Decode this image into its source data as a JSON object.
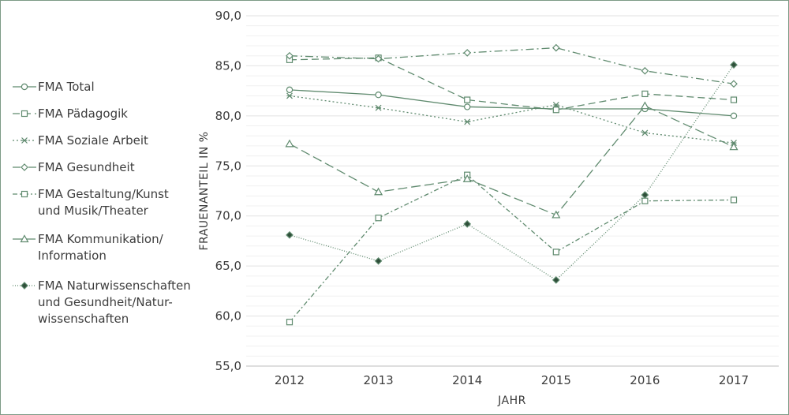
{
  "chart_data": {
    "type": "line",
    "title": "",
    "xlabel": "JAHR",
    "ylabel": "FRAUENANTEIL IN %",
    "x": [
      "2012",
      "2013",
      "2014",
      "2015",
      "2016",
      "2017"
    ],
    "ylim": [
      55,
      90
    ],
    "yticks": [
      "55,0",
      "60,0",
      "65,0",
      "70,0",
      "75,0",
      "80,0",
      "85,0",
      "90,0"
    ],
    "grid": true,
    "legend_position": "left",
    "line_color": "#5f8a6e",
    "series": [
      {
        "name": "FMA Total",
        "lines": [
          "FMA Total"
        ],
        "marker": "circle",
        "dash": "",
        "values": [
          82.6,
          82.1,
          80.9,
          80.7,
          80.7,
          80.0
        ]
      },
      {
        "name": "FMA Pädagogik",
        "lines": [
          "FMA Pädagogik"
        ],
        "marker": "square",
        "dash": "9,5",
        "values": [
          85.6,
          85.8,
          81.6,
          80.6,
          82.2,
          81.6
        ]
      },
      {
        "name": "FMA Soziale Arbeit",
        "lines": [
          "FMA Soziale Arbeit"
        ],
        "marker": "star",
        "dash": "2,3",
        "values": [
          82.0,
          80.8,
          79.4,
          81.1,
          78.3,
          77.3
        ]
      },
      {
        "name": "FMA Gesundheit",
        "lines": [
          "FMA Gesundheit"
        ],
        "marker": "diamond",
        "dash": "10,4,2,4",
        "values": [
          86.0,
          85.7,
          86.3,
          86.8,
          84.5,
          83.2
        ]
      },
      {
        "name": "FMA Gestaltung/Kunst und Musik/Theater",
        "lines": [
          "FMA Gestaltung/Kunst",
          "und Musik/Theater"
        ],
        "marker": "square",
        "dash": "6,3,2,3",
        "values": [
          59.4,
          69.8,
          74.1,
          66.4,
          71.5,
          71.6
        ]
      },
      {
        "name": "FMA Kommunikation/ Information",
        "lines": [
          "FMA Kommunikation/",
          "Information"
        ],
        "marker": "triangle",
        "dash": "12,5",
        "values": [
          77.2,
          72.4,
          73.7,
          70.1,
          81.0,
          76.9
        ]
      },
      {
        "name": "FMA Naturwissenschaften und Gesundheit/Naturwissenschaften",
        "lines": [
          "FMA Naturwissenschaften",
          "und Gesundheit/Natur-",
          "wissenschaften"
        ],
        "marker": "diamond-filled",
        "dash": "1,2",
        "values": [
          68.1,
          65.5,
          69.2,
          63.6,
          72.1,
          85.1
        ]
      }
    ]
  }
}
